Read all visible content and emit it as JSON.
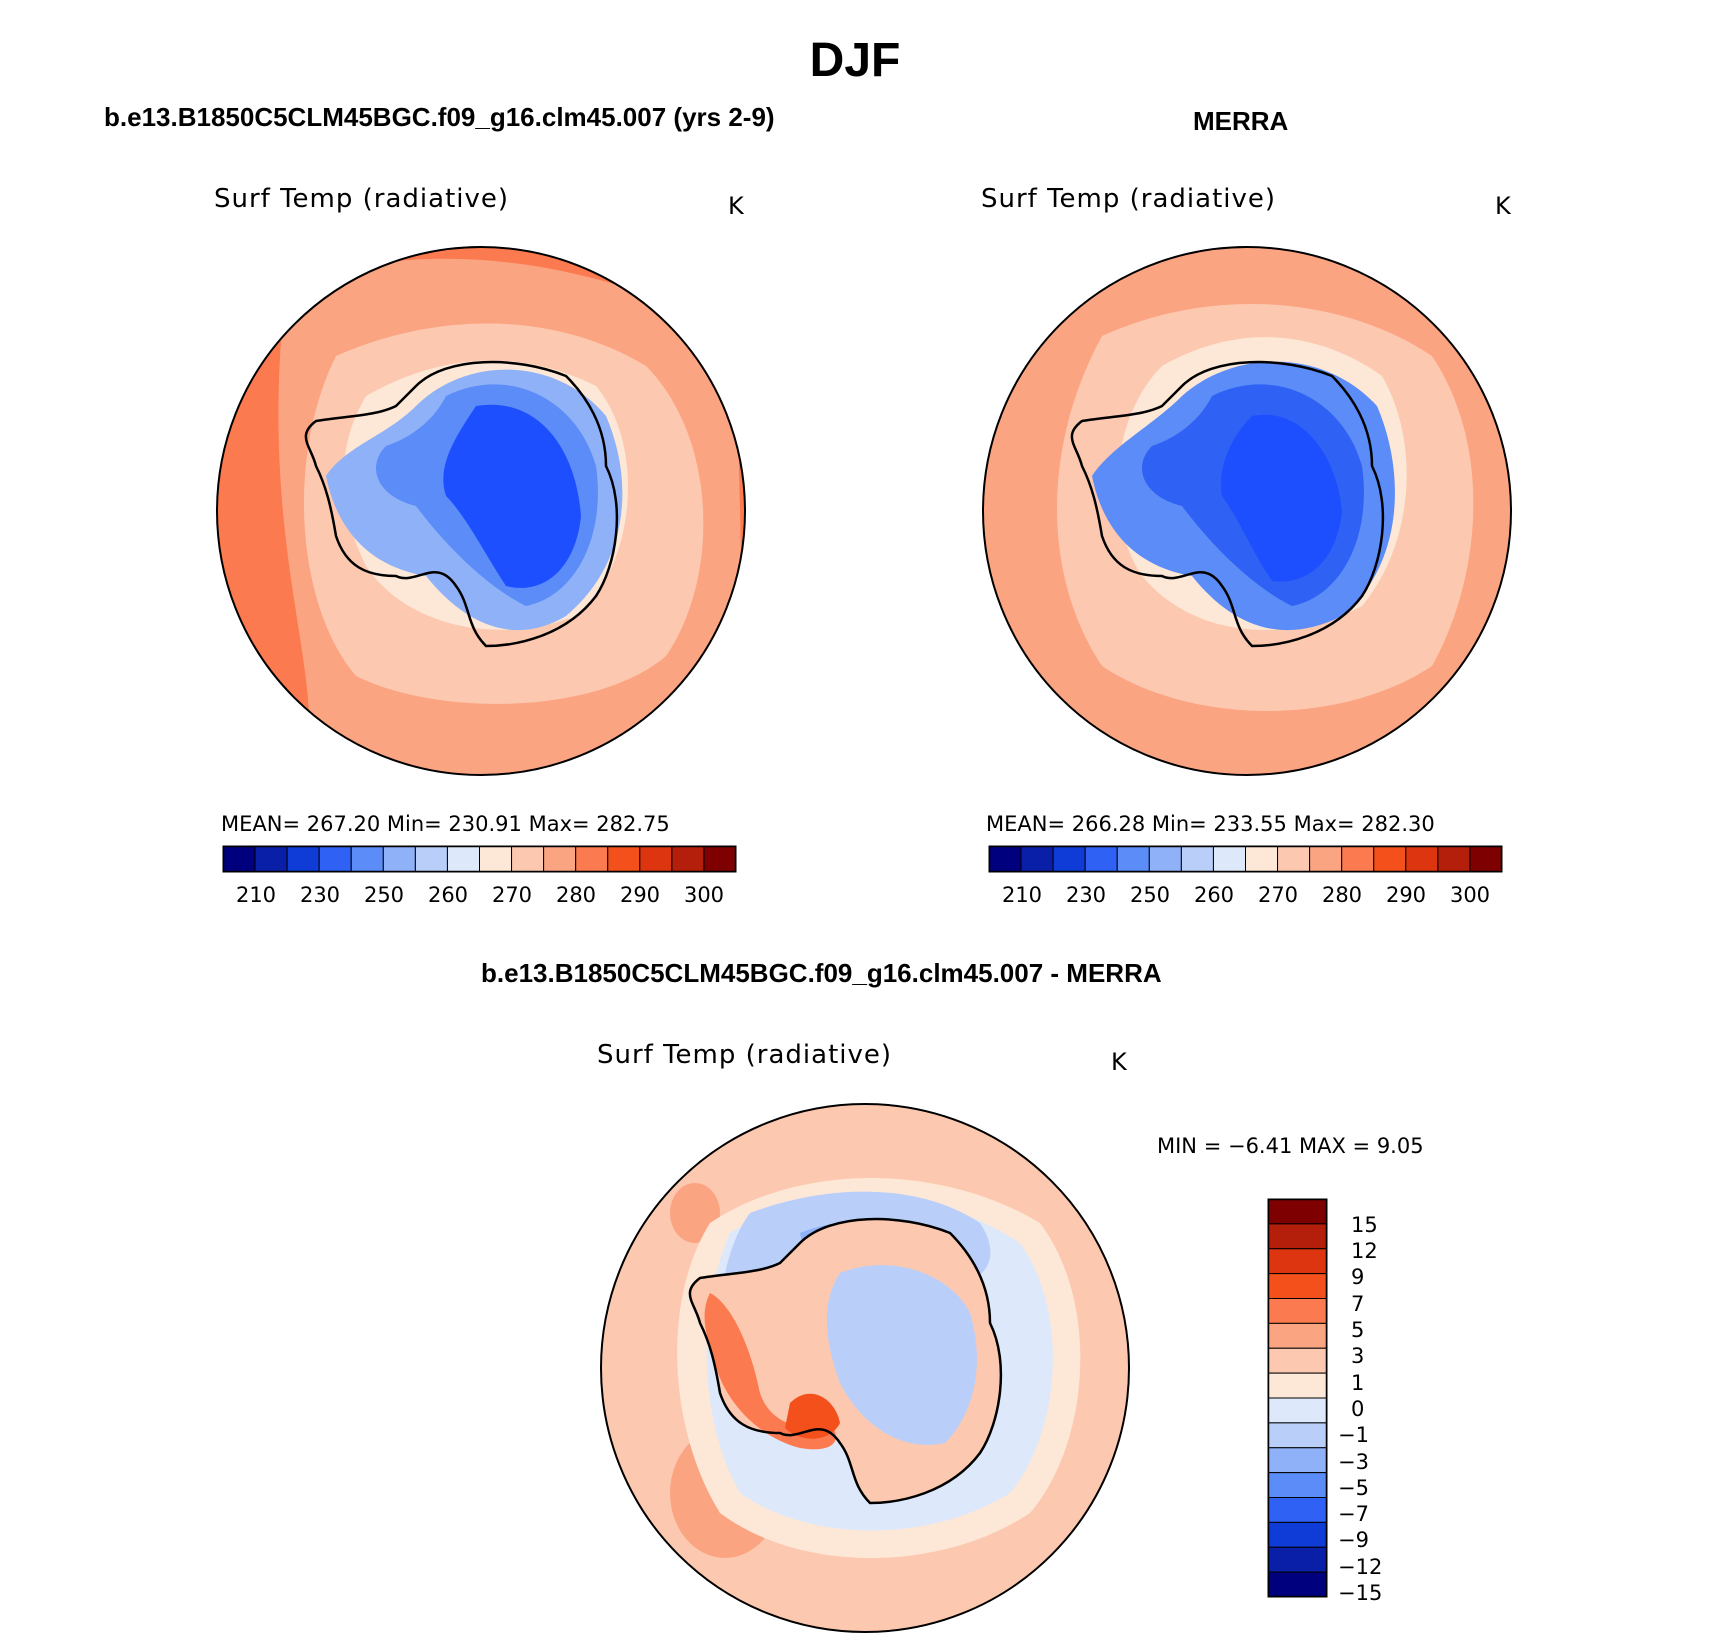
{
  "title": "DJF",
  "panels": [
    {
      "title": "b.e13.B1850C5CLM45BGC.f09_g16.clm45.007 (yrs 2-9)",
      "variable": "Surf Temp (radiative)",
      "units": "K",
      "stats": "MEAN= 267.20   Min= 230.91   Max= 282.75",
      "mean": 267.2,
      "min": 230.91,
      "max": 282.75
    },
    {
      "title": "MERRA",
      "variable": "Surf Temp (radiative)",
      "units": "K",
      "stats": "MEAN= 266.28   Min= 233.55   Max= 282.30",
      "mean": 266.28,
      "min": 233.55,
      "max": 282.3
    },
    {
      "title": "b.e13.B1850C5CLM45BGC.f09_g16.clm45.007 - MERRA",
      "variable": "Surf Temp (radiative)",
      "units": "K",
      "stats": "MIN =   −6.41  MAX =     9.05",
      "min": -6.41,
      "max": 9.05
    }
  ],
  "colorbar_abs": {
    "labels": [
      "210",
      "230",
      "250",
      "260",
      "270",
      "280",
      "290",
      "300"
    ],
    "colors": [
      "#00007f",
      "#0a1fa8",
      "#0f3bd6",
      "#2f61f5",
      "#5b8cf7",
      "#8fb1f7",
      "#b9cff9",
      "#dde9fb",
      "#fde7d6",
      "#fcc9b0",
      "#fba482",
      "#fb7a4f",
      "#f4501c",
      "#dc3510",
      "#b31f0a",
      "#7f0000"
    ]
  },
  "colorbar_diff": {
    "labels": [
      "15",
      "12",
      "9",
      "7",
      "5",
      "3",
      "1",
      "0",
      "−1",
      "−3",
      "−5",
      "−7",
      "−9",
      "−12",
      "−15"
    ],
    "colors": [
      "#7f0000",
      "#b31f0a",
      "#dc3510",
      "#f4501c",
      "#fb7a4f",
      "#fba482",
      "#fcc9b0",
      "#fde7d6",
      "#dde9fb",
      "#b9cff9",
      "#8fb1f7",
      "#5b8cf7",
      "#2f61f5",
      "#0f3bd6",
      "#0a1fa8",
      "#00007f"
    ]
  },
  "colors": {
    "ocean_warm": "#fb7a4f",
    "ocean_mid": "#fba482",
    "ocean_light": "#fcc9b0",
    "ice_edge": "#fde7d6",
    "land_deep": "#1d4fff",
    "land_mid": "#2f61f5",
    "land_light": "#5b8cf7"
  }
}
